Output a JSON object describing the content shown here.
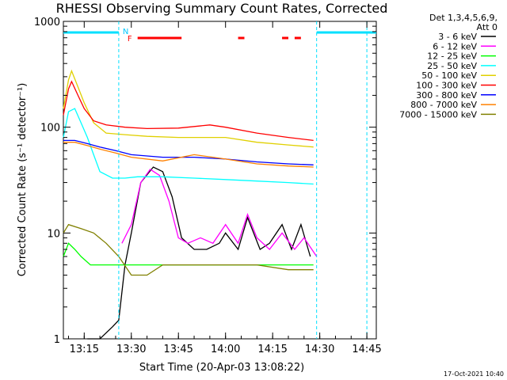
{
  "chart_data": {
    "type": "line",
    "title": "RHESSI Observing Summary Count Rates, Corrected",
    "xlabel": "Start Time (20-Apr-03 13:08:22)",
    "ylabel": "Corrected Count Rate (s⁻¹ detector⁻¹)",
    "yscale": "log",
    "ylim": [
      1,
      1000
    ],
    "xlim": [
      "13:08:22",
      "14:48:00"
    ],
    "x_ticks": [
      "13:15",
      "13:30",
      "13:45",
      "14:00",
      "14:15",
      "14:30",
      "14:45"
    ],
    "y_ticks": [
      "1",
      "10",
      "100",
      "1000"
    ],
    "grid": false,
    "legend": "right",
    "legend_title": [
      "Det 1,3,4,5,6,9,",
      "Att 0"
    ],
    "flags": {
      "N": "N",
      "F": "F"
    },
    "flare_flag_segments": [
      [
        "13:32",
        "13:46"
      ],
      [
        "14:04",
        "14:06"
      ],
      [
        "14:18",
        "14:20"
      ],
      [
        "14:22",
        "14:24"
      ]
    ],
    "night_segments": [
      [
        "13:08:22",
        "13:26"
      ],
      [
        "14:29",
        "14:48"
      ]
    ],
    "series": [
      {
        "name": "3 - 6 keV",
        "color": "#000000",
        "x": [
          "13:16",
          "13:20",
          "13:24",
          "13:26",
          "13:28",
          "13:30",
          "13:33",
          "13:37",
          "13:40",
          "13:43",
          "13:46",
          "13:50",
          "13:54",
          "13:58",
          "14:00",
          "14:04",
          "14:07",
          "14:11",
          "14:14",
          "14:18",
          "14:21",
          "14:24",
          "14:27"
        ],
        "y": [
          1,
          1,
          1.3,
          1.5,
          5,
          10,
          30,
          42,
          38,
          22,
          9,
          7,
          7,
          8,
          10,
          7,
          14,
          7,
          8,
          12,
          7,
          12,
          6
        ]
      },
      {
        "name": "6 - 12 keV",
        "color": "#ff00ff",
        "x": [
          "13:27",
          "13:30",
          "13:33",
          "13:36",
          "13:39",
          "13:42",
          "13:45",
          "13:48",
          "13:52",
          "13:56",
          "14:00",
          "14:04",
          "14:07",
          "14:10",
          "14:14",
          "14:18",
          "14:22",
          "14:25",
          "14:29"
        ],
        "y": [
          8,
          12,
          30,
          40,
          35,
          20,
          9,
          8,
          9,
          8,
          12,
          8,
          15,
          9,
          7,
          10,
          7,
          9,
          6
        ]
      },
      {
        "name": "12 - 25 keV",
        "color": "#00ff00",
        "x": [
          "13:08:22",
          "13:10",
          "13:12",
          "13:14",
          "13:17",
          "13:20",
          "13:24",
          "13:30",
          "13:40",
          "13:50",
          "14:00",
          "14:10",
          "14:20",
          "14:28"
        ],
        "y": [
          6,
          8,
          7,
          6,
          5,
          5,
          5,
          5,
          5,
          5,
          5,
          5,
          5,
          5
        ]
      },
      {
        "name": "25 - 50 keV",
        "color": "#00ffff",
        "x": [
          "13:08:22",
          "13:10",
          "13:12",
          "13:14",
          "13:16",
          "13:18",
          "13:20",
          "13:24",
          "13:28",
          "13:32",
          "13:40",
          "13:50",
          "14:00",
          "14:10",
          "14:20",
          "14:28"
        ],
        "y": [
          80,
          140,
          150,
          110,
          80,
          55,
          38,
          33,
          33,
          34,
          34,
          33,
          32,
          31,
          30,
          29
        ]
      },
      {
        "name": "50 - 100 keV",
        "color": "#e0d000",
        "x": [
          "13:08:22",
          "13:10",
          "13:11",
          "13:13",
          "13:15",
          "13:18",
          "13:22",
          "13:28",
          "13:35",
          "13:45",
          "13:55",
          "14:00",
          "14:10",
          "14:20",
          "14:28"
        ],
        "y": [
          150,
          280,
          340,
          240,
          170,
          110,
          88,
          85,
          82,
          80,
          80,
          80,
          72,
          68,
          65
        ]
      },
      {
        "name": "100 - 300 keV",
        "color": "#ff0000",
        "x": [
          "13:08:22",
          "13:10",
          "13:11",
          "13:13",
          "13:15",
          "13:18",
          "13:22",
          "13:28",
          "13:35",
          "13:45",
          "13:55",
          "14:00",
          "14:10",
          "14:20",
          "14:28"
        ],
        "y": [
          130,
          230,
          270,
          200,
          150,
          115,
          105,
          100,
          97,
          98,
          105,
          100,
          88,
          80,
          75
        ]
      },
      {
        "name": "300 - 800 keV",
        "color": "#0000ff",
        "x": [
          "13:08:22",
          "13:12",
          "13:16",
          "13:20",
          "13:25",
          "13:30",
          "13:40",
          "13:50",
          "14:00",
          "14:10",
          "14:20",
          "14:28"
        ],
        "y": [
          75,
          75,
          70,
          65,
          60,
          55,
          52,
          52,
          50,
          47,
          45,
          44
        ]
      },
      {
        "name": "800 - 7000 keV",
        "color": "#ff8000",
        "x": [
          "13:08:22",
          "13:12",
          "13:16",
          "13:20",
          "13:25",
          "13:30",
          "13:40",
          "13:50",
          "14:00",
          "14:10",
          "14:20",
          "14:28"
        ],
        "y": [
          72,
          72,
          67,
          62,
          57,
          52,
          48,
          55,
          50,
          45,
          43,
          42
        ]
      },
      {
        "name": "7000 - 15000 keV",
        "color": "#808000",
        "x": [
          "13:08:22",
          "13:10",
          "13:14",
          "13:18",
          "13:22",
          "13:26",
          "13:30",
          "13:35",
          "13:40",
          "13:50",
          "14:00",
          "14:10",
          "14:20",
          "14:28"
        ],
        "y": [
          10,
          12,
          11,
          10,
          8,
          6,
          4,
          4,
          5,
          5,
          5,
          5,
          4.5,
          4.5
        ]
      }
    ]
  },
  "timestamp": "17-Oct-2021 10:40"
}
